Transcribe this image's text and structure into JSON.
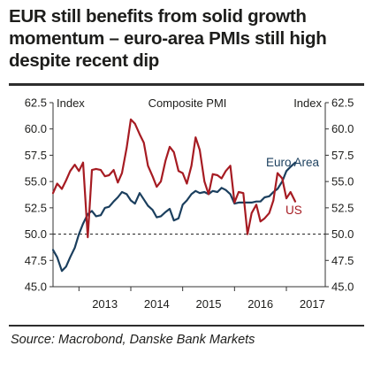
{
  "title_lines": [
    "EUR still benefits from solid growth",
    "momentum – euro-area PMIs still high",
    "despite recent dip"
  ],
  "source": "Source: Macrobond, Danske Bank Markets",
  "chart_data": {
    "type": "line",
    "title": "Composite PMI",
    "ylabel_left": "Index",
    "ylabel_right": "Index",
    "ylim": [
      45.0,
      62.5
    ],
    "yticks": [
      "62.5",
      "60.0",
      "57.5",
      "55.0",
      "52.5",
      "50.0",
      "47.5",
      "45.0"
    ],
    "reference_line": 50.0,
    "xlim": [
      2012.5,
      2017.75
    ],
    "xticks": [
      {
        "label": "2013",
        "x": 2013.0
      },
      {
        "label": "2014",
        "x": 2014.0
      },
      {
        "label": "2015",
        "x": 2015.0
      },
      {
        "label": "2016",
        "x": 2016.0
      },
      {
        "label": "2017",
        "x": 2017.0
      }
    ],
    "series": [
      {
        "name": "Euro Area",
        "color": "#1b3f5e",
        "x": [
          2012.5,
          2012.58,
          2012.67,
          2012.75,
          2012.83,
          2012.92,
          2013.0,
          2013.08,
          2013.17,
          2013.25,
          2013.33,
          2013.42,
          2013.5,
          2013.58,
          2013.67,
          2013.75,
          2013.83,
          2013.92,
          2014.0,
          2014.08,
          2014.17,
          2014.25,
          2014.33,
          2014.42,
          2014.5,
          2014.58,
          2014.67,
          2014.75,
          2014.83,
          2014.92,
          2015.0,
          2015.08,
          2015.17,
          2015.25,
          2015.33,
          2015.42,
          2015.5,
          2015.58,
          2015.67,
          2015.75,
          2015.83,
          2015.92,
          2016.0,
          2016.08,
          2016.17,
          2016.25,
          2016.33,
          2016.42,
          2016.5,
          2016.58,
          2016.67,
          2016.75,
          2016.83,
          2016.92,
          2017.0,
          2017.08,
          2017.17
        ],
        "values": [
          48.5,
          47.8,
          46.5,
          46.9,
          47.8,
          48.7,
          50.0,
          51.0,
          51.9,
          52.2,
          51.7,
          51.8,
          52.5,
          52.6,
          53.1,
          53.5,
          54.0,
          53.8,
          53.2,
          52.9,
          53.9,
          53.3,
          52.7,
          52.3,
          51.6,
          51.7,
          52.1,
          52.4,
          51.3,
          51.5,
          52.8,
          53.2,
          53.8,
          54.1,
          53.9,
          54.0,
          53.8,
          54.1,
          54.0,
          54.4,
          54.2,
          53.8,
          52.9,
          53.0,
          53.0,
          53.0,
          53.0,
          53.1,
          53.1,
          53.5,
          53.6,
          54.0,
          54.3,
          55.0,
          56.0,
          56.4,
          56.8
        ]
      },
      {
        "name": "US",
        "color": "#a61b22",
        "x": [
          2012.5,
          2012.58,
          2012.67,
          2012.75,
          2012.83,
          2012.92,
          2013.0,
          2013.08,
          2013.17,
          2013.25,
          2013.33,
          2013.42,
          2013.5,
          2013.58,
          2013.67,
          2013.75,
          2013.83,
          2013.92,
          2014.0,
          2014.08,
          2014.17,
          2014.25,
          2014.33,
          2014.42,
          2014.5,
          2014.58,
          2014.67,
          2014.75,
          2014.83,
          2014.92,
          2015.0,
          2015.08,
          2015.17,
          2015.25,
          2015.33,
          2015.42,
          2015.5,
          2015.58,
          2015.67,
          2015.75,
          2015.83,
          2015.92,
          2016.0,
          2016.08,
          2016.17,
          2016.25,
          2016.33,
          2016.42,
          2016.5,
          2016.58,
          2016.67,
          2016.75,
          2016.83,
          2016.92,
          2017.0,
          2017.08,
          2017.17
        ],
        "values": [
          53.9,
          54.8,
          54.3,
          55.1,
          56.0,
          56.6,
          56.0,
          56.8,
          49.7,
          56.1,
          56.2,
          56.1,
          55.5,
          55.6,
          56.1,
          54.9,
          55.8,
          58.2,
          60.9,
          60.5,
          59.5,
          58.7,
          56.5,
          55.5,
          54.5,
          55.0,
          57.0,
          58.3,
          57.8,
          56.0,
          55.8,
          54.8,
          56.5,
          59.2,
          58.0,
          55.0,
          53.8,
          55.7,
          55.6,
          55.3,
          56.0,
          56.5,
          53.0,
          54.0,
          53.9,
          50.0,
          52.0,
          52.8,
          51.2,
          51.5,
          52.0,
          53.2,
          55.8,
          55.3,
          53.4,
          54.0,
          53.1
        ]
      }
    ],
    "annotations": [
      {
        "text": "Euro Area",
        "color": "#1b3f5e"
      },
      {
        "text": "US",
        "color": "#a61b22"
      }
    ],
    "grid": false,
    "legend": "inline labels"
  }
}
